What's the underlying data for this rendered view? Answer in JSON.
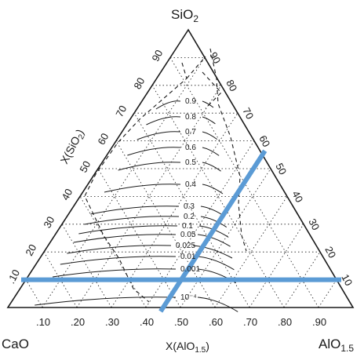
{
  "vertices": {
    "top": {
      "main": "SiO",
      "sub": "2"
    },
    "left": {
      "main": "CaO",
      "sub": ""
    },
    "right": {
      "main": "AlO",
      "sub": "1.5"
    }
  },
  "axis_titles": {
    "left": {
      "main": "X(SiO",
      "sub": "2",
      "tail": ")"
    },
    "bottom": {
      "main": "X(AlO",
      "sub": "1.5",
      "tail": ")"
    }
  },
  "bottom_ticks": [
    ".10",
    ".20",
    ".30",
    ".40",
    ".50",
    ".60",
    ".70",
    ".80",
    ".90"
  ],
  "left_ticks": [
    ".10",
    "20",
    "30",
    "40",
    "50",
    "60",
    "70",
    "80",
    "90"
  ],
  "right_ticks": [
    "10",
    "20",
    "30",
    "40",
    "50",
    "60",
    "70",
    "80",
    "90"
  ],
  "contour_labels": [
    "0.9",
    "0.8",
    "0.7",
    "0.6",
    "0.5",
    "0.4",
    "0.3",
    "0.2",
    "0.1",
    "0.05",
    "0.025",
    "0.01",
    "0.001",
    "10⁻⁴"
  ],
  "colors": {
    "ink": "#1a1a1a",
    "highlight": "#5b9bd5"
  },
  "highlight_lines": [
    {
      "name": "horizontal",
      "from": {
        "CaO": 0.9,
        "SiO2": 0.1,
        "AlO1.5": 0.0
      },
      "to": {
        "CaO": 0.0,
        "SiO2": 0.1,
        "AlO1.5": 0.9
      }
    },
    {
      "name": "diagonal",
      "from": {
        "CaO": 0.55,
        "SiO2": 0.0,
        "AlO1.5": 0.45
      },
      "to": {
        "CaO": 0.0,
        "SiO2": 0.55,
        "AlO1.5": 0.45
      }
    }
  ]
}
